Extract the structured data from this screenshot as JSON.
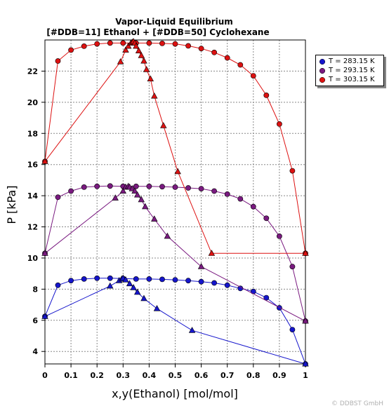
{
  "chart_data": {
    "type": "scatter",
    "title": "Vapor-Liquid Equilibrium",
    "subtitle": "[#DDB=11] Ethanol + [#DDB=50] Cyclohexane",
    "xlabel": "x,y(Ethanol) [mol/mol]",
    "ylabel": "P [kPa]",
    "xlim": [
      0,
      1
    ],
    "ylim": [
      3.2,
      24
    ],
    "xticks": [
      0,
      0.1,
      0.2,
      0.3,
      0.4,
      0.5,
      0.6,
      0.7,
      0.8,
      0.9,
      1
    ],
    "xtick_labels": [
      "0",
      "0.1",
      "0.2",
      "0.3",
      "0.4",
      "0.5",
      "0.6",
      "0.7",
      "0.8",
      "0.9",
      "1"
    ],
    "yticks": [
      4,
      6,
      8,
      10,
      12,
      14,
      16,
      18,
      20,
      22
    ],
    "ytick_labels": [
      "4",
      "6",
      "8",
      "10",
      "12",
      "14",
      "16",
      "18",
      "20",
      "22"
    ],
    "grid": true,
    "legend_position": "right-top",
    "series": [
      {
        "name": "T = 283.15 K",
        "color": "#1515cc",
        "liquid_x": [
          0,
          0.05,
          0.1,
          0.15,
          0.2,
          0.25,
          0.3,
          0.35,
          0.4,
          0.45,
          0.5,
          0.55,
          0.6,
          0.65,
          0.7,
          0.75,
          0.8,
          0.85,
          0.9,
          0.95,
          1
        ],
        "liquid_p": [
          6.25,
          8.25,
          8.55,
          8.65,
          8.7,
          8.7,
          8.68,
          8.65,
          8.65,
          8.63,
          8.6,
          8.55,
          8.48,
          8.4,
          8.25,
          8.05,
          7.85,
          7.45,
          6.8,
          5.4,
          3.2
        ],
        "vapor_y": [
          0,
          0.25,
          0.285,
          0.295,
          0.3,
          0.31,
          0.325,
          0.34,
          0.355,
          0.38,
          0.43,
          0.565,
          1
        ],
        "vapor_p": [
          6.25,
          8.2,
          8.55,
          8.65,
          8.7,
          8.6,
          8.35,
          8.1,
          7.8,
          7.4,
          6.75,
          5.35,
          3.2
        ]
      },
      {
        "name": "T = 293.15 K",
        "color": "#7a1a80",
        "liquid_x": [
          0,
          0.05,
          0.1,
          0.15,
          0.2,
          0.25,
          0.3,
          0.35,
          0.4,
          0.45,
          0.5,
          0.55,
          0.6,
          0.65,
          0.7,
          0.75,
          0.8,
          0.85,
          0.9,
          0.95,
          1
        ],
        "liquid_p": [
          10.3,
          13.9,
          14.3,
          14.55,
          14.6,
          14.62,
          14.6,
          14.6,
          14.6,
          14.58,
          14.55,
          14.5,
          14.45,
          14.3,
          14.1,
          13.8,
          13.3,
          12.55,
          11.4,
          9.45,
          5.95
        ],
        "vapor_y": [
          0,
          0.27,
          0.3,
          0.31,
          0.32,
          0.325,
          0.335,
          0.345,
          0.355,
          0.37,
          0.385,
          0.42,
          0.47,
          0.6,
          1
        ],
        "vapor_p": [
          10.3,
          13.85,
          14.3,
          14.55,
          14.6,
          14.55,
          14.45,
          14.3,
          14.05,
          13.75,
          13.3,
          12.5,
          11.4,
          9.45,
          5.95
        ]
      },
      {
        "name": "T = 303.15 K",
        "color": "#dd1111",
        "liquid_x": [
          0,
          0.05,
          0.1,
          0.15,
          0.2,
          0.25,
          0.3,
          0.35,
          0.4,
          0.45,
          0.5,
          0.55,
          0.6,
          0.65,
          0.7,
          0.75,
          0.8,
          0.85,
          0.9,
          0.95,
          1
        ],
        "liquid_p": [
          16.2,
          22.65,
          23.35,
          23.6,
          23.75,
          23.8,
          23.8,
          23.8,
          23.8,
          23.78,
          23.75,
          23.62,
          23.45,
          23.2,
          22.85,
          22.4,
          21.7,
          20.45,
          18.6,
          15.6,
          10.3
        ],
        "vapor_y": [
          0,
          0.29,
          0.31,
          0.32,
          0.33,
          0.335,
          0.34,
          0.345,
          0.35,
          0.36,
          0.37,
          0.38,
          0.39,
          0.405,
          0.42,
          0.455,
          0.51,
          0.64,
          1
        ],
        "vapor_p": [
          16.2,
          22.6,
          23.35,
          23.6,
          23.8,
          23.85,
          23.9,
          23.8,
          23.6,
          23.3,
          23.0,
          22.65,
          22.1,
          21.5,
          20.4,
          18.5,
          15.55,
          10.3,
          10.3
        ]
      }
    ]
  },
  "watermark": "© DDBST GmbH"
}
